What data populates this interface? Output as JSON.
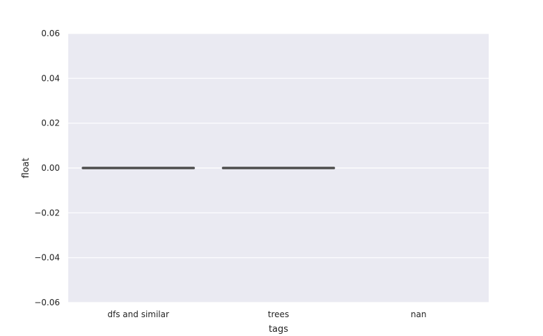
{
  "chart_data": {
    "type": "box",
    "xlabel": "tags",
    "ylabel": "float",
    "categories": [
      "dfs and similar",
      "trees",
      "nan"
    ],
    "ylim": [
      -0.06,
      0.06
    ],
    "yticks": [
      0.06,
      0.04,
      0.02,
      0.0,
      -0.02,
      -0.04,
      -0.06
    ],
    "ytick_labels": [
      "0.06",
      "0.04",
      "0.02",
      "0.00",
      "−0.02",
      "−0.04",
      "−0.06"
    ],
    "boxes": [
      {
        "category": "dfs and similar",
        "min": 0,
        "q1": 0,
        "median": 0,
        "q3": 0,
        "max": 0
      },
      {
        "category": "trees",
        "min": 0,
        "q1": 0,
        "median": 0,
        "q3": 0,
        "max": 0
      },
      {
        "category": "nan",
        "min": null,
        "q1": null,
        "median": null,
        "q3": null,
        "max": null
      }
    ],
    "grid": true,
    "colors": {
      "plot_background": "#eaeaf2",
      "grid": "#ffffff",
      "box_line": "#4d4d4d"
    }
  }
}
